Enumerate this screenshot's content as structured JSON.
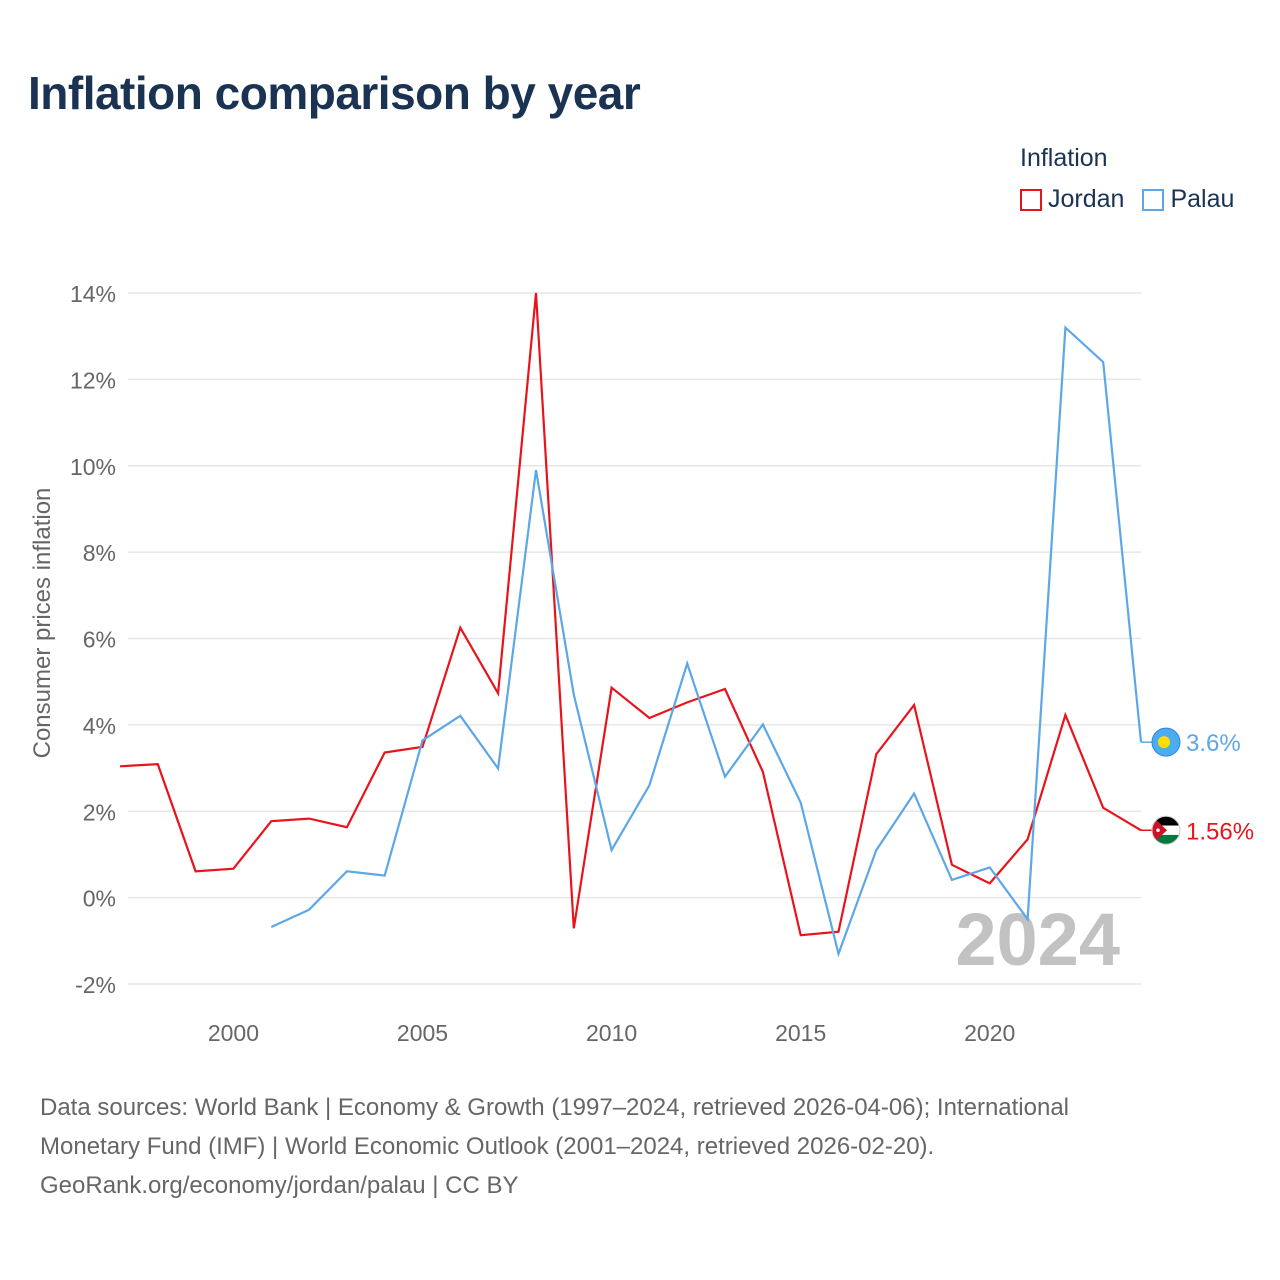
{
  "title": "Inflation comparison by year",
  "legend": {
    "title": "Inflation",
    "items": [
      {
        "label": "Jordan",
        "color": "#e8141c"
      },
      {
        "label": "Palau",
        "color": "#5ea7e6"
      }
    ]
  },
  "year_watermark": "2024",
  "end_labels": {
    "palau": "3.6%",
    "jordan": "1.56%"
  },
  "sources": {
    "line1": "Data sources: World Bank | Economy & Growth (1997–2024, retrieved 2026-04-06); International",
    "line2": "Monetary Fund (IMF) | World Economic Outlook (2001–2024, retrieved 2026-02-20).",
    "line3": "GeoRank.org/economy/jordan/palau | CC BY"
  },
  "chart_data": {
    "type": "line",
    "title": "Inflation comparison by year",
    "xlabel": "",
    "ylabel": "Consumer prices inflation",
    "xlim": [
      1997,
      2024
    ],
    "ylim": [
      -2,
      14
    ],
    "y_ticks": [
      -2,
      0,
      2,
      4,
      6,
      8,
      10,
      12,
      14
    ],
    "y_tick_labels": [
      "-2%",
      "0%",
      "2%",
      "4%",
      "6%",
      "8%",
      "10%",
      "12%",
      "14%"
    ],
    "x_ticks": [
      2000,
      2005,
      2010,
      2015,
      2020
    ],
    "x_tick_labels": [
      "2000",
      "2005",
      "2010",
      "2015",
      "2020"
    ],
    "grid": true,
    "legend_position": "top-right",
    "series": [
      {
        "name": "Jordan",
        "color": "#e8141c",
        "x": [
          1997,
          1998,
          1999,
          2000,
          2001,
          2002,
          2003,
          2004,
          2005,
          2006,
          2007,
          2008,
          2009,
          2010,
          2011,
          2012,
          2013,
          2014,
          2015,
          2016,
          2017,
          2018,
          2019,
          2020,
          2021,
          2022,
          2023,
          2024
        ],
        "y": [
          3.04,
          3.09,
          0.61,
          0.67,
          1.77,
          1.83,
          1.63,
          3.36,
          3.49,
          6.25,
          4.73,
          14.0,
          -0.71,
          4.86,
          4.16,
          4.52,
          4.83,
          2.91,
          -0.87,
          -0.79,
          3.32,
          4.46,
          0.76,
          0.33,
          1.35,
          4.23,
          2.08,
          1.56
        ]
      },
      {
        "name": "Palau",
        "color": "#5ea7e6",
        "x": [
          2001,
          2002,
          2003,
          2004,
          2005,
          2006,
          2007,
          2008,
          2009,
          2010,
          2011,
          2012,
          2013,
          2014,
          2015,
          2016,
          2017,
          2018,
          2019,
          2020,
          2021,
          2022,
          2023,
          2024
        ],
        "y": [
          -0.68,
          -0.28,
          0.61,
          0.51,
          3.64,
          4.21,
          2.99,
          9.9,
          4.7,
          1.1,
          2.6,
          5.42,
          2.8,
          4.01,
          2.2,
          -1.3,
          1.1,
          2.41,
          0.41,
          0.7,
          -0.5,
          13.2,
          12.4,
          3.6
        ]
      }
    ]
  }
}
